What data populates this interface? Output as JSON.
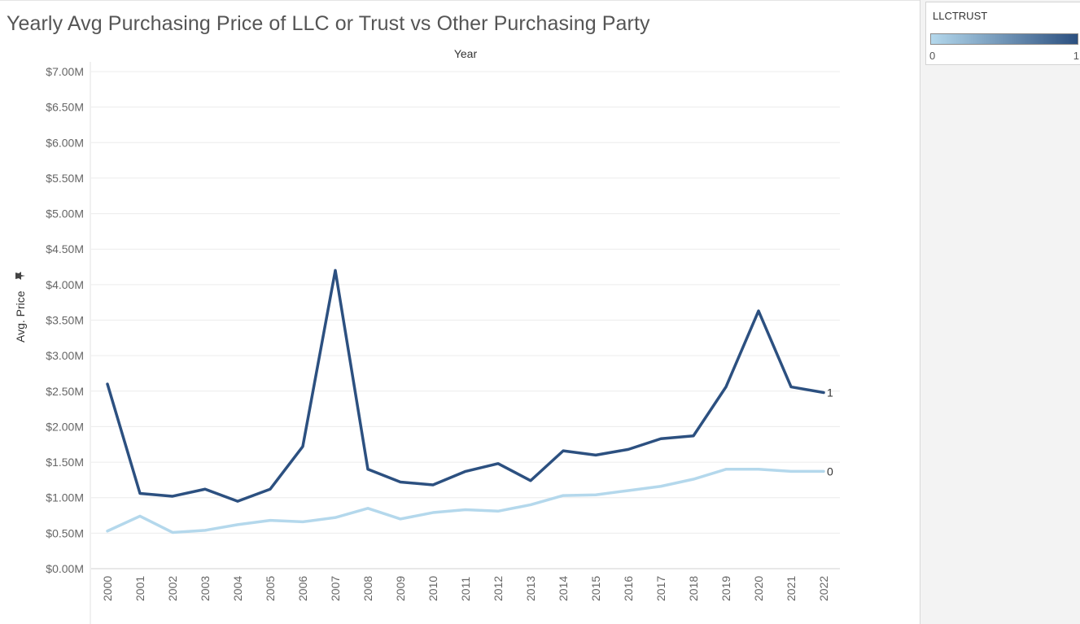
{
  "chart_data": {
    "type": "line",
    "title": "Yearly Avg Purchasing Price of LLC or Trust vs Other Purchasing Party",
    "column_header": "Year",
    "ylabel": "Avg. Price",
    "ylabel_icon": "pin-icon",
    "ylim": [
      0,
      7000000
    ],
    "y_ticks": [
      {
        "value": 0,
        "label": "$0.00M"
      },
      {
        "value": 500000,
        "label": "$0.50M"
      },
      {
        "value": 1000000,
        "label": "$1.00M"
      },
      {
        "value": 1500000,
        "label": "$1.50M"
      },
      {
        "value": 2000000,
        "label": "$2.00M"
      },
      {
        "value": 2500000,
        "label": "$2.50M"
      },
      {
        "value": 3000000,
        "label": "$3.00M"
      },
      {
        "value": 3500000,
        "label": "$3.50M"
      },
      {
        "value": 4000000,
        "label": "$4.00M"
      },
      {
        "value": 4500000,
        "label": "$4.50M"
      },
      {
        "value": 5000000,
        "label": "$5.00M"
      },
      {
        "value": 5500000,
        "label": "$5.50M"
      },
      {
        "value": 6000000,
        "label": "$6.00M"
      },
      {
        "value": 6500000,
        "label": "$6.50M"
      },
      {
        "value": 7000000,
        "label": "$7.00M"
      }
    ],
    "categories": [
      "2000",
      "2001",
      "2002",
      "2003",
      "2004",
      "2005",
      "2006",
      "2007",
      "2008",
      "2009",
      "2010",
      "2011",
      "2012",
      "2013",
      "2014",
      "2015",
      "2016",
      "2017",
      "2018",
      "2019",
      "2020",
      "2021",
      "2022"
    ],
    "series": [
      {
        "name": "1",
        "color": "#2c5080",
        "values": [
          2600000,
          1060000,
          1020000,
          1120000,
          950000,
          1120000,
          1720000,
          4200000,
          1400000,
          1220000,
          1180000,
          1370000,
          1480000,
          1240000,
          1660000,
          1600000,
          1680000,
          1830000,
          1870000,
          2560000,
          3630000,
          2560000,
          2480000
        ]
      },
      {
        "name": "0",
        "color": "#b4d8ec",
        "values": [
          530000,
          740000,
          510000,
          540000,
          620000,
          680000,
          660000,
          720000,
          850000,
          700000,
          790000,
          830000,
          810000,
          900000,
          1030000,
          1040000,
          1100000,
          1160000,
          1260000,
          1400000,
          1400000,
          1370000,
          1370000
        ]
      }
    ],
    "grid": "horizontal",
    "legend_placement": "right"
  },
  "legend": {
    "title": "LLCTRUST",
    "min_label": "0",
    "max_label": "1",
    "gradient_start": "#b4d8ec",
    "gradient_end": "#2c5080"
  }
}
